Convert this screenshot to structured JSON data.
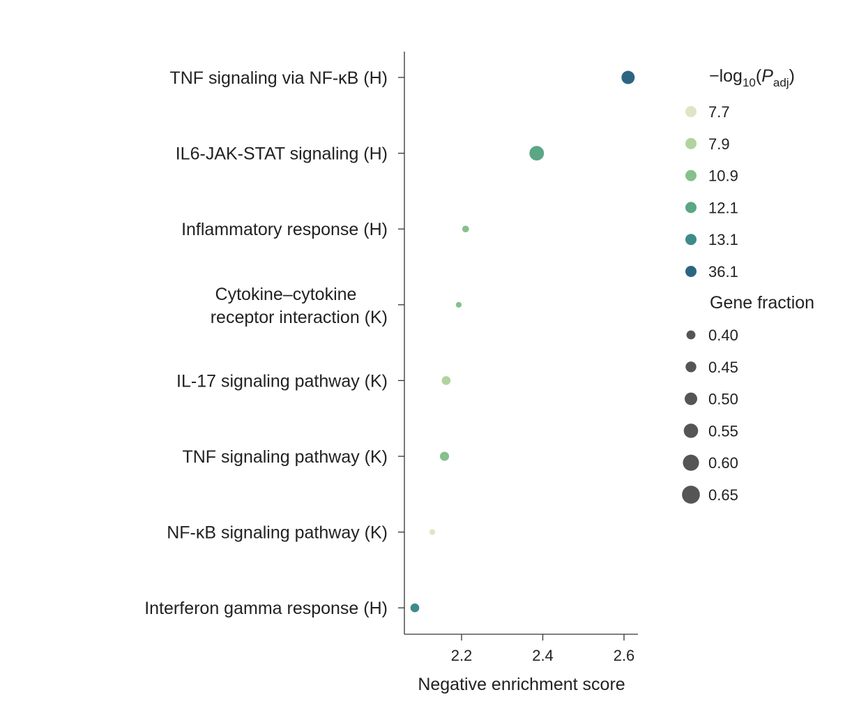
{
  "chart_data": {
    "type": "scatter",
    "xlabel": "Negative enrichment score",
    "xlim": [
      2.06,
      2.63
    ],
    "xticks": [
      {
        "value": 2.2,
        "label": "2.2"
      },
      {
        "value": 2.4,
        "label": "2.4"
      },
      {
        "value": 2.6,
        "label": "2.6"
      }
    ],
    "categories": [
      [
        "TNF signaling via NF-κB (H)"
      ],
      [
        "IL6-JAK-STAT signaling (H)"
      ],
      [
        "Inflammatory response (H)"
      ],
      [
        "Cytokine–cytokine",
        "receptor interaction (K)"
      ],
      [
        "IL-17 signaling pathway (K)"
      ],
      [
        "TNF signaling pathway (K)"
      ],
      [
        "NF-κB signaling pathway (K)"
      ],
      [
        "Interferon gamma response (H)"
      ]
    ],
    "points": [
      {
        "x": 2.61,
        "neg_log10_padj": 36.1,
        "gene_fraction": 0.6
      },
      {
        "x": 2.385,
        "neg_log10_padj": 12.1,
        "gene_fraction": 0.64
      },
      {
        "x": 2.21,
        "neg_log10_padj": 10.9,
        "gene_fraction": 0.41
      },
      {
        "x": 2.193,
        "neg_log10_padj": 10.9,
        "gene_fraction": 0.38
      },
      {
        "x": 2.162,
        "neg_log10_padj": 7.9,
        "gene_fraction": 0.47
      },
      {
        "x": 2.158,
        "neg_log10_padj": 10.9,
        "gene_fraction": 0.48
      },
      {
        "x": 2.128,
        "neg_log10_padj": 7.7,
        "gene_fraction": 0.38
      },
      {
        "x": 2.085,
        "neg_log10_padj": 13.1,
        "gene_fraction": 0.47
      }
    ],
    "legend": {
      "placement": "right",
      "color_title": {
        "prefix": "−log",
        "sub": "10",
        "open": "(",
        "italic": "P",
        "italic_sub": "adj",
        "close": ")"
      },
      "color_entries": [
        {
          "label": "7.7",
          "value": 7.7,
          "color": "#dde6c4"
        },
        {
          "label": "7.9",
          "value": 7.9,
          "color": "#b0d39f"
        },
        {
          "label": "10.9",
          "value": 10.9,
          "color": "#86c08c"
        },
        {
          "label": "12.1",
          "value": 12.1,
          "color": "#5aa685"
        },
        {
          "label": "13.1",
          "value": 13.1,
          "color": "#3f8a8a"
        },
        {
          "label": "36.1",
          "value": 36.1,
          "color": "#2c6582"
        }
      ],
      "size_title": "Gene fraction",
      "size_entries": [
        {
          "label": "0.40",
          "value": 0.4
        },
        {
          "label": "0.45",
          "value": 0.45
        },
        {
          "label": "0.50",
          "value": 0.5
        },
        {
          "label": "0.55",
          "value": 0.55
        },
        {
          "label": "0.60",
          "value": 0.6
        },
        {
          "label": "0.65",
          "value": 0.65
        }
      ],
      "size_color": "#555555"
    }
  }
}
